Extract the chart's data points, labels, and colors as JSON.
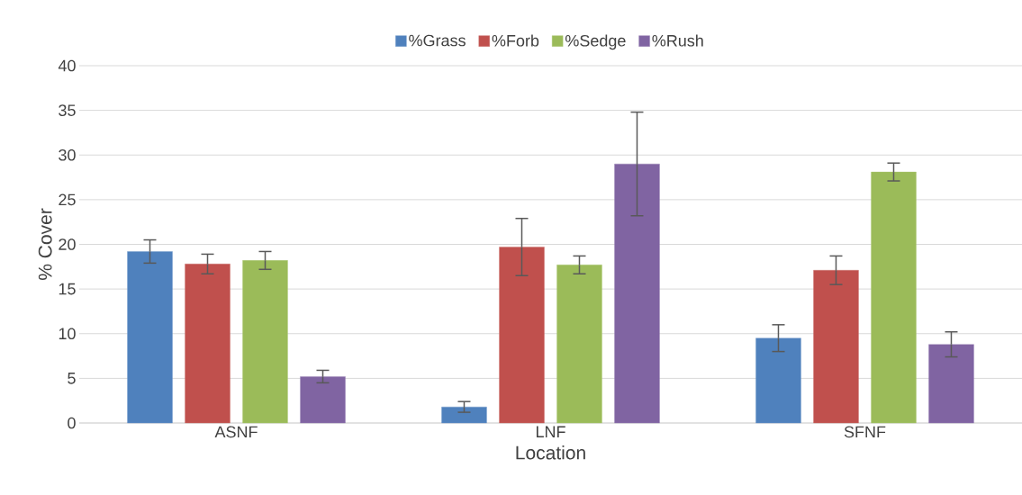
{
  "chart_data": {
    "type": "bar",
    "xlabel": "Location",
    "ylabel": "% Cover",
    "categories": [
      "ASNF",
      "LNF",
      "SFNF"
    ],
    "series": [
      {
        "name": "%Grass",
        "color": "#4f81bd",
        "values": [
          19.2,
          1.8,
          9.5
        ],
        "errors": [
          1.3,
          0.6,
          1.5
        ]
      },
      {
        "name": "%Forb",
        "color": "#c0504d",
        "values": [
          17.8,
          19.7,
          17.1
        ],
        "errors": [
          1.1,
          3.2,
          1.6
        ]
      },
      {
        "name": "%Sedge",
        "color": "#9bbb59",
        "values": [
          18.2,
          17.7,
          28.1
        ],
        "errors": [
          1.0,
          1.0,
          1.0
        ]
      },
      {
        "name": "%Rush",
        "color": "#8064a2",
        "values": [
          5.2,
          29.0,
          8.8
        ],
        "errors": [
          0.7,
          5.8,
          1.4
        ]
      }
    ],
    "ylim": [
      0,
      40
    ],
    "yticks": [
      0,
      5,
      10,
      15,
      20,
      25,
      30,
      35,
      40
    ],
    "grid": "y",
    "legend": "top"
  }
}
